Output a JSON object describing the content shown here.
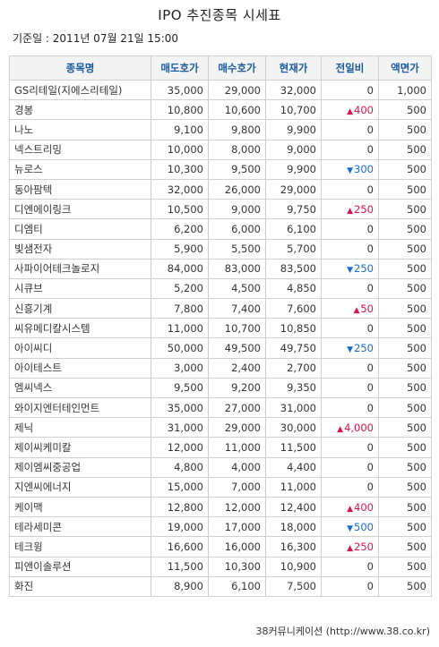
{
  "title": "IPO 추진종목 시세표",
  "basis": "기준일 : 2011년 07월 21일 15:00",
  "headers": [
    "종목명",
    "매도호가",
    "매수호가",
    "현재가",
    "전일비",
    "액면가"
  ],
  "rows": [
    {
      "name": "GS리테일(지에스리테일)",
      "ask": "35,000",
      "bid": "29,000",
      "price": "32,000",
      "dir": "flat",
      "change": "0",
      "par": "1,000"
    },
    {
      "name": "경봉",
      "ask": "10,800",
      "bid": "10,600",
      "price": "10,700",
      "dir": "up",
      "change": "400",
      "par": "500"
    },
    {
      "name": "나노",
      "ask": "9,100",
      "bid": "9,800",
      "price": "9,900",
      "dir": "flat",
      "change": "0",
      "par": "500"
    },
    {
      "name": "넥스트리밍",
      "ask": "10,000",
      "bid": "8,000",
      "price": "9,000",
      "dir": "flat",
      "change": "0",
      "par": "500"
    },
    {
      "name": "뉴로스",
      "ask": "10,300",
      "bid": "9,500",
      "price": "9,900",
      "dir": "down",
      "change": "300",
      "par": "500"
    },
    {
      "name": "동아팜텍",
      "ask": "32,000",
      "bid": "26,000",
      "price": "29,000",
      "dir": "flat",
      "change": "0",
      "par": "500"
    },
    {
      "name": "디엔에이링크",
      "ask": "10,500",
      "bid": "9,000",
      "price": "9,750",
      "dir": "up",
      "change": "250",
      "par": "500"
    },
    {
      "name": "디엠티",
      "ask": "6,200",
      "bid": "6,000",
      "price": "6,100",
      "dir": "flat",
      "change": "0",
      "par": "500"
    },
    {
      "name": "빛샘전자",
      "ask": "5,900",
      "bid": "5,500",
      "price": "5,700",
      "dir": "flat",
      "change": "0",
      "par": "500"
    },
    {
      "name": "사파이어테크놀로지",
      "ask": "84,000",
      "bid": "83,000",
      "price": "83,500",
      "dir": "down",
      "change": "250",
      "par": "500"
    },
    {
      "name": "시큐브",
      "ask": "5,200",
      "bid": "4,500",
      "price": "4,850",
      "dir": "flat",
      "change": "0",
      "par": "500"
    },
    {
      "name": "신흥기계",
      "ask": "7,800",
      "bid": "7,400",
      "price": "7,600",
      "dir": "up",
      "change": "50",
      "par": "500"
    },
    {
      "name": "씨유메디칼시스템",
      "ask": "11,000",
      "bid": "10,700",
      "price": "10,850",
      "dir": "flat",
      "change": "0",
      "par": "500"
    },
    {
      "name": "아이씨디",
      "ask": "50,000",
      "bid": "49,500",
      "price": "49,750",
      "dir": "down",
      "change": "250",
      "par": "500"
    },
    {
      "name": "아이테스트",
      "ask": "3,000",
      "bid": "2,400",
      "price": "2,700",
      "dir": "flat",
      "change": "0",
      "par": "500"
    },
    {
      "name": "엠씨넥스",
      "ask": "9,500",
      "bid": "9,200",
      "price": "9,350",
      "dir": "flat",
      "change": "0",
      "par": "500"
    },
    {
      "name": "와이지엔터테인먼트",
      "ask": "35,000",
      "bid": "27,000",
      "price": "31,000",
      "dir": "flat",
      "change": "0",
      "par": "500"
    },
    {
      "name": "제닉",
      "ask": "31,000",
      "bid": "29,000",
      "price": "30,000",
      "dir": "up",
      "change": "4,000",
      "par": "500"
    },
    {
      "name": "제이씨케미칼",
      "ask": "12,000",
      "bid": "11,000",
      "price": "11,500",
      "dir": "flat",
      "change": "0",
      "par": "500"
    },
    {
      "name": "제이엠씨중공업",
      "ask": "4,800",
      "bid": "4,000",
      "price": "4,400",
      "dir": "flat",
      "change": "0",
      "par": "500"
    },
    {
      "name": "지엔씨에너지",
      "ask": "15,000",
      "bid": "7,000",
      "price": "11,000",
      "dir": "flat",
      "change": "0",
      "par": "500"
    },
    {
      "name": "케이맥",
      "ask": "12,800",
      "bid": "12,000",
      "price": "12,400",
      "dir": "up",
      "change": "400",
      "par": "500"
    },
    {
      "name": "테라세미콘",
      "ask": "19,000",
      "bid": "17,000",
      "price": "18,000",
      "dir": "down",
      "change": "500",
      "par": "500"
    },
    {
      "name": "테크윙",
      "ask": "16,600",
      "bid": "16,000",
      "price": "16,300",
      "dir": "up",
      "change": "250",
      "par": "500"
    },
    {
      "name": "피앤이솔루션",
      "ask": "11,500",
      "bid": "10,300",
      "price": "10,900",
      "dir": "flat",
      "change": "0",
      "par": "500"
    },
    {
      "name": "화진",
      "ask": "8,900",
      "bid": "6,100",
      "price": "7,500",
      "dir": "flat",
      "change": "0",
      "par": "500"
    }
  ],
  "arrows": {
    "up": "▲",
    "down": "▼"
  },
  "colors": {
    "up": "#d9144c",
    "down": "#1a6ccf",
    "header_text": "#1a5aa0"
  },
  "footer": "38커뮤니케이션 (http://www.38.co.kr)"
}
